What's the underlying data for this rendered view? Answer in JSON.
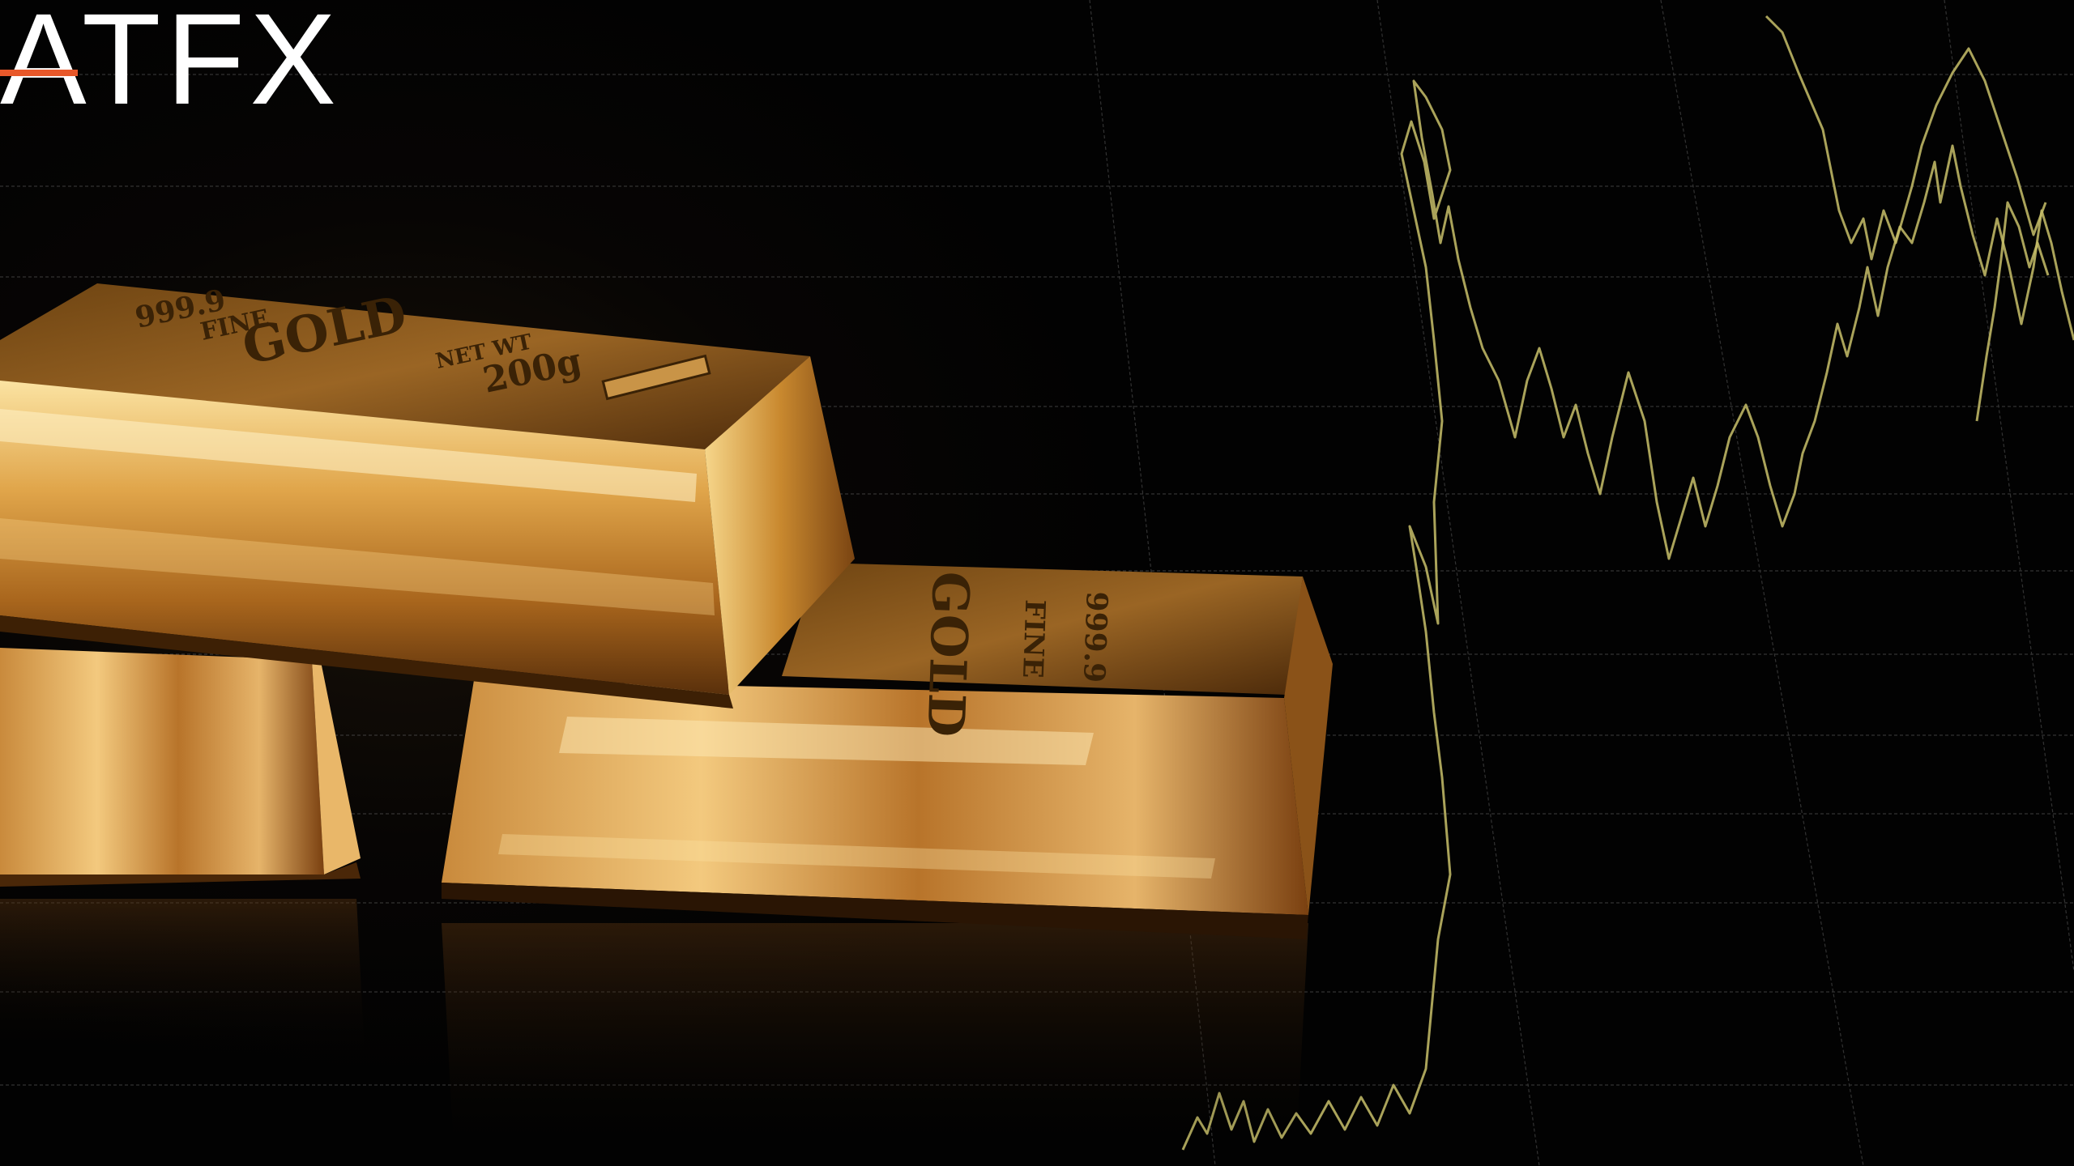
{
  "brand": {
    "logo_text": "ATFX",
    "logo_color": "#ffffff",
    "accent_color": "#e8582a"
  },
  "bars": {
    "top_bar": {
      "stamp_purity": "999.9",
      "stamp_fine": "FINE",
      "stamp_metal": "GOLD",
      "stamp_weight_label": "NET WT",
      "stamp_weight": "200g"
    },
    "right_bar": {
      "stamp_metal": "GOLD",
      "stamp_fine": "FINE",
      "stamp_purity": "999.9"
    }
  },
  "colors": {
    "background": "#030303",
    "grid": "#5a5a5a",
    "chart_line": "#c8c06a",
    "gold_light": "#f7d88a",
    "gold_mid": "#d69a3a",
    "gold_dark": "#6b3a0e"
  }
}
